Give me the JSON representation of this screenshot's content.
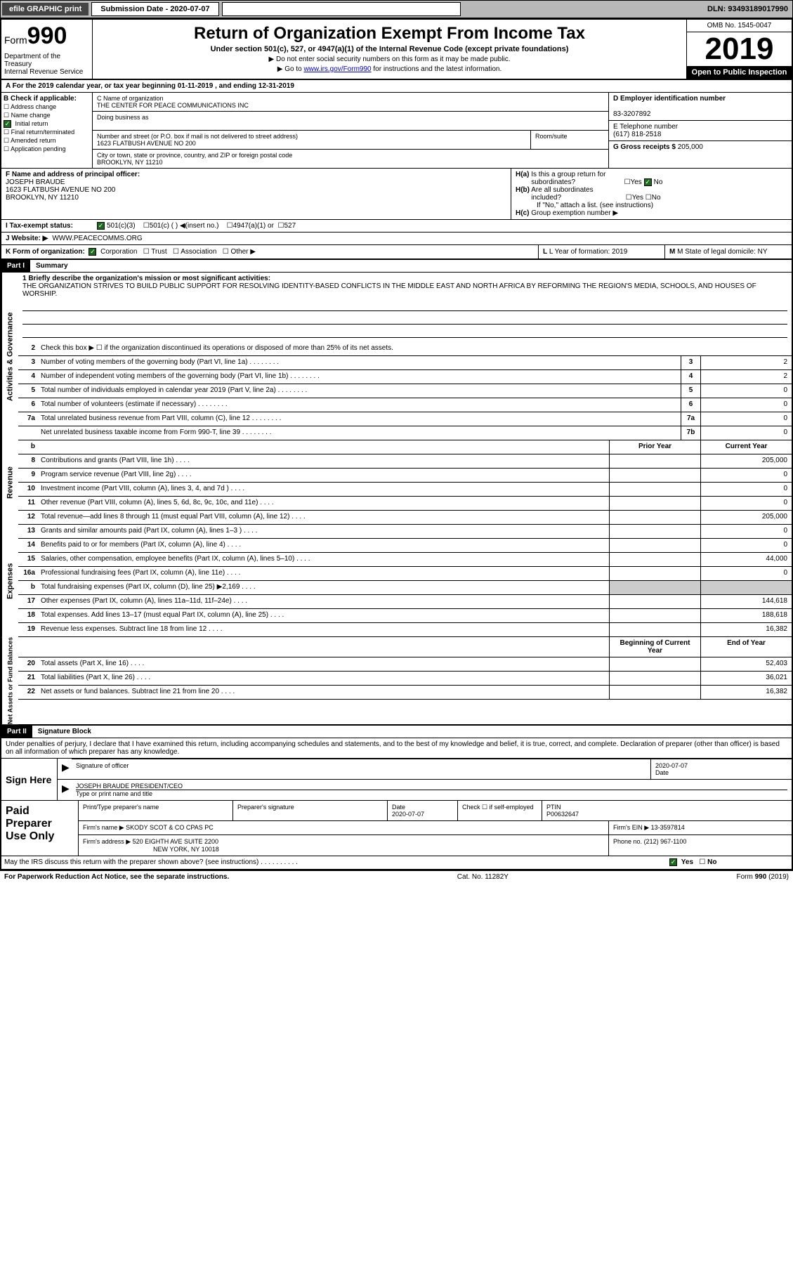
{
  "topbar": {
    "efile": "efile GRAPHIC print",
    "submission_label": "Submission Date - 2020-07-07",
    "dln": "DLN: 93493189017990"
  },
  "header": {
    "form_label": "Form",
    "form_num": "990",
    "dept": "Department of the Treasury\nInternal Revenue Service",
    "title": "Return of Organization Exempt From Income Tax",
    "sub": "Under section 501(c), 527, or 4947(a)(1) of the Internal Revenue Code (except private foundations)",
    "note1": "▶ Do not enter social security numbers on this form as it may be made public.",
    "note2_pre": "▶ Go to ",
    "note2_link": "www.irs.gov/Form990",
    "note2_post": " for instructions and the latest information.",
    "omb": "OMB No. 1545-0047",
    "year": "2019",
    "openpub": "Open to Public Inspection"
  },
  "row_a": "A  For the 2019 calendar year, or tax year beginning 01-11-2019    , and ending 12-31-2019",
  "col_b": {
    "label": "B Check if applicable:",
    "opts": [
      "Address change",
      "Name change",
      "Initial return",
      "Final return/terminated",
      "Amended return",
      "Application pending"
    ],
    "checked_idx": 2
  },
  "col_c": {
    "name_lbl": "C Name of organization",
    "name": "THE CENTER FOR PEACE COMMUNICATIONS INC",
    "dba_lbl": "Doing business as",
    "dba": "",
    "addr_lbl": "Number and street (or P.O. box if mail is not delivered to street address)",
    "room_lbl": "Room/suite",
    "addr": "1623 FLATBUSH AVENUE NO 200",
    "city_lbl": "City or town, state or province, country, and ZIP or foreign postal code",
    "city": "BROOKLYN, NY  11210"
  },
  "col_d": {
    "ein_lbl": "D Employer identification number",
    "ein": "83-3207892",
    "phone_lbl": "E Telephone number",
    "phone": "(617) 818-2518",
    "gross_lbl": "G Gross receipts $ ",
    "gross": "205,000"
  },
  "row_f": {
    "f_lbl": "F  Name and address of principal officer:",
    "f_name": "JOSEPH BRAUDE",
    "f_addr": "1623 FLATBUSH AVENUE NO 200\nBROOKLYN, NY  11210",
    "ha": "H(a)  Is this a group return for subordinates?",
    "ha_yes": "Yes",
    "ha_no": "No",
    "hb": "H(b)  Are all subordinates included?",
    "hb_note": "If \"No,\" attach a list. (see instructions)",
    "hc": "H(c)  Group exemption number ▶"
  },
  "row_i": {
    "lbl": "I  Tax-exempt status:",
    "o1": "501(c)(3)",
    "o2": "501(c) (   ) ◀(insert no.)",
    "o3": "4947(a)(1) or",
    "o4": "527"
  },
  "row_j": {
    "lbl": "J  Website: ▶",
    "val": "WWW.PEACECOMMS.ORG"
  },
  "row_k": {
    "k": "K Form of organization:",
    "k1": "Corporation",
    "k2": "Trust",
    "k3": "Association",
    "k4": "Other ▶",
    "l": "L Year of formation: 2019",
    "m": "M State of legal domicile: NY"
  },
  "part1": {
    "title": "Part I",
    "label": "Summary",
    "q1_lbl": "1  Briefly describe the organization's mission or most significant activities:",
    "q1": "THE ORGANIZATION STRIVES TO BUILD PUBLIC SUPPORT FOR RESOLVING IDENTITY-BASED CONFLICTS IN THE MIDDLE EAST AND NORTH AFRICA BY REFORMING THE REGION'S MEDIA, SCHOOLS, AND HOUSES OF WORSHIP.",
    "q2": "Check this box ▶ ☐  if the organization discontinued its operations or disposed of more than 25% of its net assets."
  },
  "gov_lines": [
    {
      "n": "3",
      "d": "Number of voting members of the governing body (Part VI, line 1a)",
      "b": "3",
      "v": "2"
    },
    {
      "n": "4",
      "d": "Number of independent voting members of the governing body (Part VI, line 1b)",
      "b": "4",
      "v": "2"
    },
    {
      "n": "5",
      "d": "Total number of individuals employed in calendar year 2019 (Part V, line 2a)",
      "b": "5",
      "v": "0"
    },
    {
      "n": "6",
      "d": "Total number of volunteers (estimate if necessary)",
      "b": "6",
      "v": "0"
    },
    {
      "n": "7a",
      "d": "Total unrelated business revenue from Part VIII, column (C), line 12",
      "b": "7a",
      "v": "0"
    },
    {
      "n": "",
      "d": "Net unrelated business taxable income from Form 990-T, line 39",
      "b": "7b",
      "v": "0"
    }
  ],
  "rev_hdr": {
    "n": "b",
    "py": "Prior Year",
    "cy": "Current Year"
  },
  "rev_lines": [
    {
      "n": "8",
      "d": "Contributions and grants (Part VIII, line 1h)",
      "py": "",
      "cy": "205,000"
    },
    {
      "n": "9",
      "d": "Program service revenue (Part VIII, line 2g)",
      "py": "",
      "cy": "0"
    },
    {
      "n": "10",
      "d": "Investment income (Part VIII, column (A), lines 3, 4, and 7d )",
      "py": "",
      "cy": "0"
    },
    {
      "n": "11",
      "d": "Other revenue (Part VIII, column (A), lines 5, 6d, 8c, 9c, 10c, and 11e)",
      "py": "",
      "cy": "0"
    },
    {
      "n": "12",
      "d": "Total revenue—add lines 8 through 11 (must equal Part VIII, column (A), line 12)",
      "py": "",
      "cy": "205,000"
    }
  ],
  "exp_lines": [
    {
      "n": "13",
      "d": "Grants and similar amounts paid (Part IX, column (A), lines 1–3 )",
      "py": "",
      "cy": "0"
    },
    {
      "n": "14",
      "d": "Benefits paid to or for members (Part IX, column (A), line 4)",
      "py": "",
      "cy": "0"
    },
    {
      "n": "15",
      "d": "Salaries, other compensation, employee benefits (Part IX, column (A), lines 5–10)",
      "py": "",
      "cy": "44,000"
    },
    {
      "n": "16a",
      "d": "Professional fundraising fees (Part IX, column (A), line 11e)",
      "py": "",
      "cy": "0"
    },
    {
      "n": "b",
      "d": "Total fundraising expenses (Part IX, column (D), line 25) ▶2,169",
      "py": "shade",
      "cy": "shade"
    },
    {
      "n": "17",
      "d": "Other expenses (Part IX, column (A), lines 11a–11d, 11f–24e)",
      "py": "",
      "cy": "144,618"
    },
    {
      "n": "18",
      "d": "Total expenses. Add lines 13–17 (must equal Part IX, column (A), line 25)",
      "py": "",
      "cy": "188,618"
    },
    {
      "n": "19",
      "d": "Revenue less expenses. Subtract line 18 from line 12",
      "py": "",
      "cy": "16,382"
    }
  ],
  "na_hdr": {
    "py": "Beginning of Current Year",
    "cy": "End of Year"
  },
  "na_lines": [
    {
      "n": "20",
      "d": "Total assets (Part X, line 16)",
      "py": "",
      "cy": "52,403"
    },
    {
      "n": "21",
      "d": "Total liabilities (Part X, line 26)",
      "py": "",
      "cy": "36,021"
    },
    {
      "n": "22",
      "d": "Net assets or fund balances. Subtract line 21 from line 20",
      "py": "",
      "cy": "16,382"
    }
  ],
  "part2": {
    "title": "Part II",
    "label": "Signature Block",
    "decl": "Under penalties of perjury, I declare that I have examined this return, including accompanying schedules and statements, and to the best of my knowledge and belief, it is true, correct, and complete. Declaration of preparer (other than officer) is based on all information of which preparer has any knowledge."
  },
  "sign": {
    "here": "Sign Here",
    "sig_lbl": "Signature of officer",
    "date_lbl": "Date",
    "date": "2020-07-07",
    "name": "JOSEPH BRAUDE  PRESIDENT/CEO",
    "name_lbl": "Type or print name and title"
  },
  "prep": {
    "title": "Paid Preparer Use Only",
    "c1": "Print/Type preparer's name",
    "c2": "Preparer's signature",
    "c3": "Date",
    "c3v": "2020-07-07",
    "c4": "Check ☐ if self-employed",
    "c5": "PTIN",
    "c5v": "P00632647",
    "firm_lbl": "Firm's name    ▶",
    "firm": "SKODY SCOT & CO CPAS PC",
    "ein_lbl": "Firm's EIN ▶",
    "ein": "13-3597814",
    "addr_lbl": "Firm's address ▶",
    "addr": "520 EIGHTH AVE SUITE 2200",
    "city": "NEW YORK, NY  10018",
    "phone_lbl": "Phone no.",
    "phone": "(212) 967-1100"
  },
  "footer": {
    "discuss": "May the IRS discuss this return with the preparer shown above? (see instructions)",
    "yes": "Yes",
    "no": "No",
    "pra": "For Paperwork Reduction Act Notice, see the separate instructions.",
    "cat": "Cat. No. 11282Y",
    "form": "Form 990 (2019)"
  },
  "side_labels": {
    "ag": "Activities & Governance",
    "rev": "Revenue",
    "exp": "Expenses",
    "na": "Net Assets or Fund Balances"
  }
}
